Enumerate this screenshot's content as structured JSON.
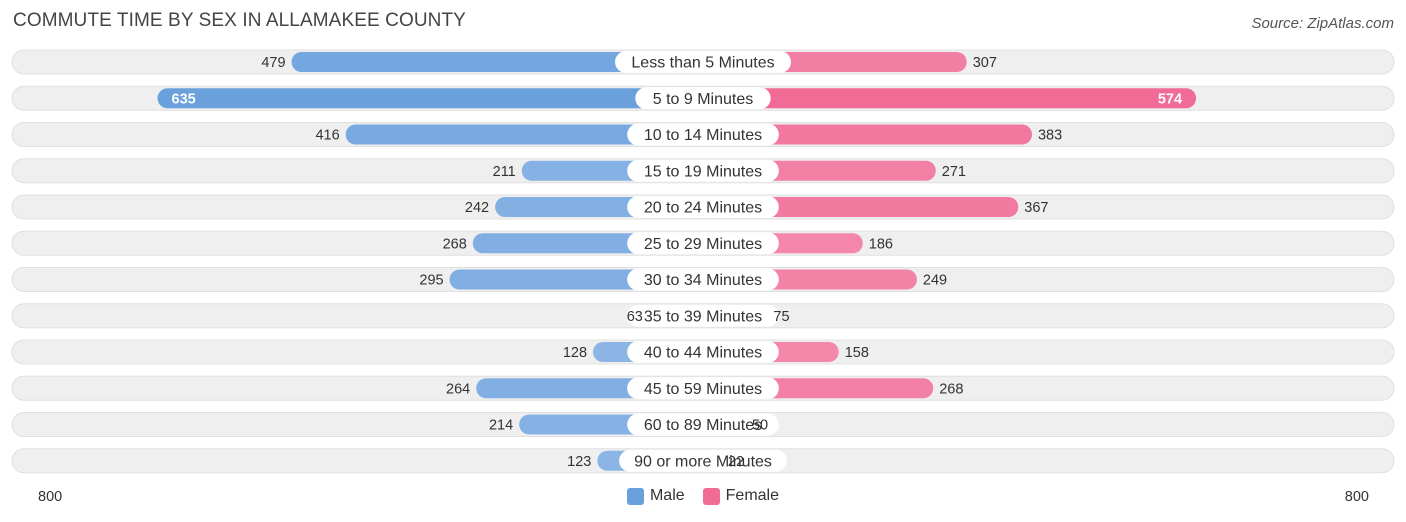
{
  "header": {
    "title": "COMMUTE TIME BY SEX IN ALLAMAKEE COUNTY",
    "source": "Source: ZipAtlas.com"
  },
  "colors": {
    "male": "#6aa0dc",
    "male_light": "#a9c8ee",
    "female": "#f06b96",
    "female_light": "#f7a9c3"
  },
  "chart_data": {
    "type": "bar",
    "orientation": "horizontal-diverging",
    "title": "COMMUTE TIME BY SEX IN ALLAMAKEE COUNTY",
    "categories": [
      "Less than 5 Minutes",
      "5 to 9 Minutes",
      "10 to 14 Minutes",
      "15 to 19 Minutes",
      "20 to 24 Minutes",
      "25 to 29 Minutes",
      "30 to 34 Minutes",
      "35 to 39 Minutes",
      "40 to 44 Minutes",
      "45 to 59 Minutes",
      "60 to 89 Minutes",
      "90 or more Minutes"
    ],
    "series": [
      {
        "name": "Male",
        "values": [
          479,
          635,
          416,
          211,
          242,
          268,
          295,
          63,
          128,
          264,
          214,
          123
        ]
      },
      {
        "name": "Female",
        "values": [
          307,
          574,
          383,
          271,
          367,
          186,
          249,
          75,
          158,
          268,
          50,
          22
        ]
      }
    ],
    "axis": {
      "min_label": "800",
      "max_label": "800",
      "range": [
        800,
        800
      ]
    },
    "legend": {
      "placement": "bottom-center",
      "labels": [
        "Male",
        "Female"
      ]
    }
  }
}
